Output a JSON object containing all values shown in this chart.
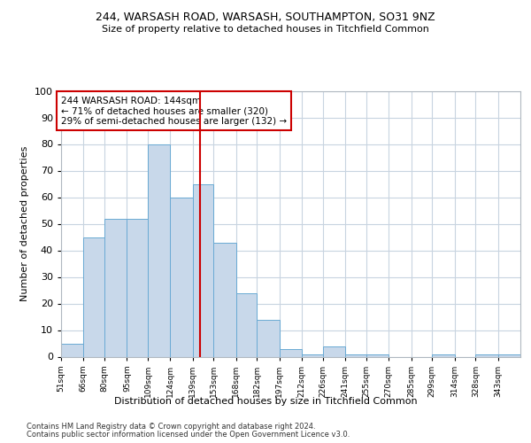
{
  "title1": "244, WARSASH ROAD, WARSASH, SOUTHAMPTON, SO31 9NZ",
  "title2": "Size of property relative to detached houses in Titchfield Common",
  "xlabel": "Distribution of detached houses by size in Titchfield Common",
  "ylabel": "Number of detached properties",
  "footnote1": "Contains HM Land Registry data © Crown copyright and database right 2024.",
  "footnote2": "Contains public sector information licensed under the Open Government Licence v3.0.",
  "bin_labels": [
    "51sqm",
    "66sqm",
    "80sqm",
    "95sqm",
    "109sqm",
    "124sqm",
    "139sqm",
    "153sqm",
    "168sqm",
    "182sqm",
    "197sqm",
    "212sqm",
    "226sqm",
    "241sqm",
    "255sqm",
    "270sqm",
    "285sqm",
    "299sqm",
    "314sqm",
    "328sqm",
    "343sqm"
  ],
  "values": [
    5,
    45,
    52,
    52,
    80,
    60,
    65,
    43,
    24,
    14,
    3,
    1,
    4,
    1,
    1,
    0,
    0,
    1,
    0,
    1,
    1
  ],
  "bin_edges": [
    51,
    66,
    80,
    95,
    109,
    124,
    139,
    153,
    168,
    182,
    197,
    212,
    226,
    241,
    255,
    270,
    285,
    299,
    314,
    328,
    343,
    358
  ],
  "bar_color": "#c8d8ea",
  "bar_edge_color": "#6aaad4",
  "grid_color": "#c8d4e0",
  "ref_line_x": 144,
  "ref_line_color": "#cc0000",
  "annotation_text": "244 WARSASH ROAD: 144sqm\n← 71% of detached houses are smaller (320)\n29% of semi-detached houses are larger (132) →",
  "annotation_box_color": "#ffffff",
  "annotation_box_edge": "#cc0000",
  "ylim": [
    0,
    100
  ],
  "yticks": [
    0,
    10,
    20,
    30,
    40,
    50,
    60,
    70,
    80,
    90,
    100
  ]
}
